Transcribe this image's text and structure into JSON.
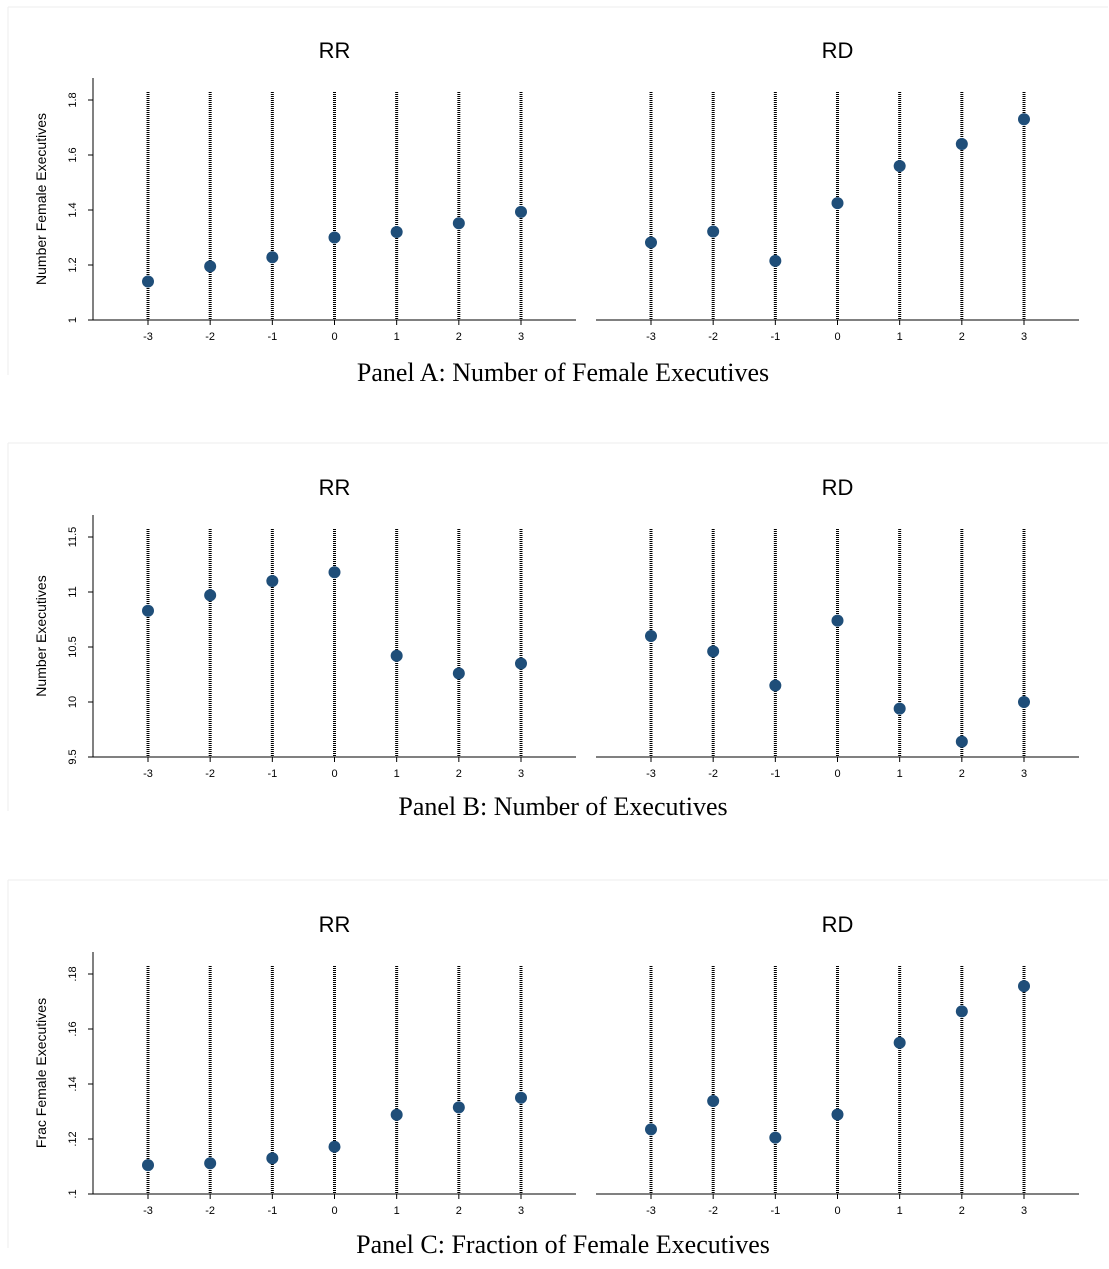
{
  "colors": {
    "marker": "#1f4e79",
    "axis": "#000000",
    "panel_border": "#eeeeee"
  },
  "chart_data": [
    {
      "type": "scatter",
      "caption": "Panel A: Number of Female Executives",
      "ylabel": "Number Female Executives",
      "ylim": [
        1,
        1.88
      ],
      "yticks": [
        1,
        1.2,
        1.4,
        1.6,
        1.8
      ],
      "ytick_labels": [
        "1",
        "1.2",
        "1.4",
        "1.6",
        "1.8"
      ],
      "x": [
        -3,
        -2,
        -1,
        0,
        1,
        2,
        3
      ],
      "xtick_labels": [
        "-3",
        "-2",
        "-1",
        "0",
        "1",
        "2",
        "3"
      ],
      "grid": "vertical dotted lines at each x",
      "subplots": [
        {
          "title": "RR",
          "values": [
            1.14,
            1.195,
            1.228,
            1.3,
            1.32,
            1.352,
            1.393
          ]
        },
        {
          "title": "RD",
          "values": [
            1.282,
            1.322,
            1.215,
            1.425,
            1.56,
            1.64,
            1.73
          ]
        }
      ]
    },
    {
      "type": "scatter",
      "caption": "Panel B: Number of Executives",
      "ylabel": "Number Executives",
      "ylim": [
        9.5,
        11.7
      ],
      "yticks": [
        9.5,
        10,
        10.5,
        11,
        11.5
      ],
      "ytick_labels": [
        "9.5",
        "10",
        "10.5",
        "11",
        "11.5"
      ],
      "x": [
        -3,
        -2,
        -1,
        0,
        1,
        2,
        3
      ],
      "xtick_labels": [
        "-3",
        "-2",
        "-1",
        "0",
        "1",
        "2",
        "3"
      ],
      "grid": "vertical dotted lines at each x",
      "subplots": [
        {
          "title": "RR",
          "values": [
            10.83,
            10.97,
            11.1,
            11.18,
            10.42,
            10.26,
            10.35
          ]
        },
        {
          "title": "RD",
          "values": [
            10.6,
            10.46,
            10.15,
            10.74,
            9.94,
            9.64,
            10.0
          ]
        }
      ]
    },
    {
      "type": "scatter",
      "caption": "Panel C: Fraction of Female Executives",
      "ylabel": "Frac Female Executives",
      "ylim": [
        0.1,
        0.188
      ],
      "yticks": [
        0.1,
        0.12,
        0.14,
        0.16,
        0.18
      ],
      "ytick_labels": [
        ".1",
        ".12",
        ".14",
        ".16",
        ".18"
      ],
      "x": [
        -3,
        -2,
        -1,
        0,
        1,
        2,
        3
      ],
      "xtick_labels": [
        "-3",
        "-2",
        "-1",
        "0",
        "1",
        "2",
        "3"
      ],
      "grid": "vertical dotted lines at each x",
      "subplots": [
        {
          "title": "RR",
          "values": [
            0.1105,
            0.1112,
            0.113,
            0.1172,
            0.1288,
            0.1315,
            0.135
          ]
        },
        {
          "title": "RD",
          "values": [
            0.1235,
            0.1338,
            0.1205,
            0.1289,
            0.155,
            0.1664,
            0.1756
          ]
        }
      ]
    }
  ]
}
